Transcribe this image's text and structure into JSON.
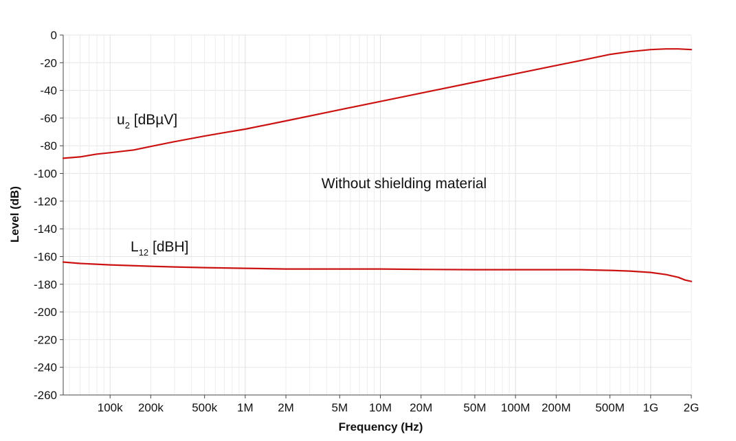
{
  "chart_data": {
    "type": "line",
    "title": "",
    "xlabel": "Frequency (Hz)",
    "ylabel": "Level (dB)",
    "xscale": "log",
    "xlim": [
      45000,
      2000000000
    ],
    "ylim": [
      -260,
      0
    ],
    "grid": true,
    "x_ticks": [
      {
        "value": 100000,
        "label": "100k"
      },
      {
        "value": 200000,
        "label": "200k"
      },
      {
        "value": 500000,
        "label": "500k"
      },
      {
        "value": 1000000,
        "label": "1M"
      },
      {
        "value": 2000000,
        "label": "2M"
      },
      {
        "value": 5000000,
        "label": "5M"
      },
      {
        "value": 10000000,
        "label": "10M"
      },
      {
        "value": 20000000,
        "label": "20M"
      },
      {
        "value": 50000000,
        "label": "50M"
      },
      {
        "value": 100000000,
        "label": "100M"
      },
      {
        "value": 200000000,
        "label": "200M"
      },
      {
        "value": 500000000,
        "label": "500M"
      },
      {
        "value": 1000000000,
        "label": "1G"
      },
      {
        "value": 2000000000,
        "label": "2G"
      }
    ],
    "y_ticks": [
      {
        "value": 0,
        "label": "0"
      },
      {
        "value": -20,
        "label": "-20"
      },
      {
        "value": -40,
        "label": "-40"
      },
      {
        "value": -60,
        "label": "-60"
      },
      {
        "value": -80,
        "label": "-80"
      },
      {
        "value": -100,
        "label": "-100"
      },
      {
        "value": -120,
        "label": "-120"
      },
      {
        "value": -140,
        "label": "-140"
      },
      {
        "value": -160,
        "label": "-160"
      },
      {
        "value": -180,
        "label": "-180"
      },
      {
        "value": -200,
        "label": "-200"
      },
      {
        "value": -220,
        "label": "-220"
      },
      {
        "value": -240,
        "label": "-240"
      },
      {
        "value": -260,
        "label": "-260"
      }
    ],
    "annotation": "Without shielding material",
    "line_color": "#cc1111",
    "series": [
      {
        "name_main": "u",
        "name_sub": "2",
        "name_unit": " [dBµV]",
        "x": [
          45000,
          60000,
          80000,
          100000,
          150000,
          200000,
          300000,
          500000,
          700000,
          1000000,
          2000000,
          5000000,
          10000000,
          20000000,
          50000000,
          100000000,
          200000000,
          300000000,
          500000000,
          700000000,
          1000000000,
          1300000000,
          1600000000,
          2000000000
        ],
        "y": [
          -89,
          -88,
          -86,
          -85,
          -83,
          -80.5,
          -77,
          -73,
          -70.5,
          -68,
          -62,
          -54,
          -48,
          -42,
          -34,
          -28,
          -22,
          -18.5,
          -14,
          -12,
          -10.5,
          -10,
          -10,
          -10.5
        ]
      },
      {
        "name_main": "L",
        "name_sub": "12",
        "name_unit": " [dBH]",
        "x": [
          45000,
          60000,
          100000,
          200000,
          300000,
          500000,
          1000000,
          2000000,
          5000000,
          10000000,
          20000000,
          50000000,
          100000000,
          200000000,
          300000000,
          500000000,
          700000000,
          1000000000,
          1300000000,
          1600000000,
          1800000000,
          2000000000
        ],
        "y": [
          -164,
          -165,
          -166,
          -167,
          -167.5,
          -168,
          -168.5,
          -169,
          -169,
          -169,
          -169.3,
          -169.5,
          -169.5,
          -169.5,
          -169.5,
          -170,
          -170.5,
          -171.5,
          -173,
          -175,
          -177,
          -178
        ]
      }
    ]
  }
}
